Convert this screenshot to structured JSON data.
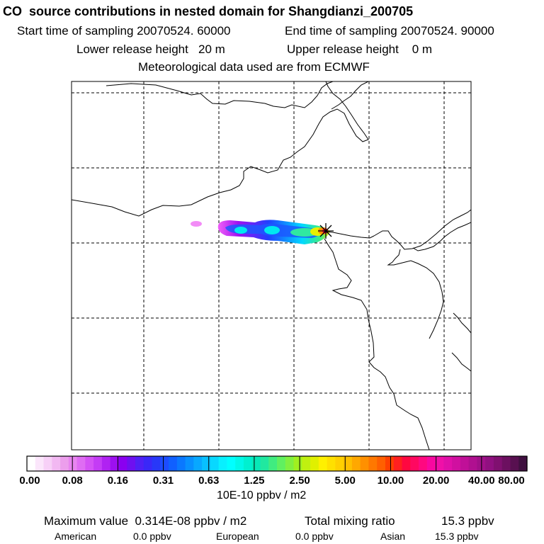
{
  "header": {
    "title": "CO  source contributions in nested domain for Shangdianzi_200705",
    "start_label": "Start time of sampling 20070524. 60000",
    "end_label": "End time of sampling 20070524. 90000",
    "lower_release": "Lower release height   20 m",
    "upper_release": "Upper release height    0 m",
    "met_source": "Meteorological data used are from ECMWF"
  },
  "colorbar": {
    "tick_labels": [
      "0.00",
      "0.08",
      "0.16",
      "0.31",
      "0.63",
      "1.25",
      "2.50",
      "5.00",
      "10.00",
      "20.00",
      "40.00",
      "80.00"
    ],
    "units": "10E-10 ppbv / m2",
    "colors": [
      "#ffffff",
      "#fbe6fb",
      "#f7d0f7",
      "#f2b8f2",
      "#ec9eec",
      "#e885f0",
      "#df6cf3",
      "#d452f5",
      "#c43cf5",
      "#b022f2",
      "#9d10f0",
      "#8a00f0",
      "#6e10f0",
      "#5020f5",
      "#3a28f8",
      "#2838f8",
      "#1c4cff",
      "#1060ff",
      "#0a78ff",
      "#0890ff",
      "#08a8ff",
      "#08c0ff",
      "#08d8ff",
      "#08f0ff",
      "#00ffff",
      "#00f8e8",
      "#00f0d0",
      "#08e8b8",
      "#20e8a0",
      "#40ec80",
      "#60f060",
      "#80f040",
      "#a0f020",
      "#c0f010",
      "#e0f000",
      "#fff000",
      "#ffe000",
      "#ffd000",
      "#ffc000",
      "#ffa800",
      "#ff9000",
      "#ff7800",
      "#ff6000",
      "#ff4000",
      "#ff2020",
      "#ff0840",
      "#ff0860",
      "#ff0880",
      "#f808a0",
      "#f010a8",
      "#e010a8",
      "#d010a0",
      "#c01098",
      "#b01090",
      "#a01088",
      "#901080",
      "#801070",
      "#6c1060",
      "#581050",
      "#401040"
    ]
  },
  "map": {
    "receptor": "Shangdianzi",
    "receptor_marker": "asterisk",
    "grid_style": "dashed"
  },
  "summary": {
    "max_value": "Maximum value  0.314E-08 ppbv / m2",
    "total_label": "Total mixing ratio",
    "total_value": "15.3 ppbv",
    "american_label": "American",
    "american_value": "0.0 ppbv",
    "european_label": "European",
    "european_value": "0.0 ppbv",
    "asian_label": "Asian",
    "asian_value": "15.3 ppbv"
  }
}
